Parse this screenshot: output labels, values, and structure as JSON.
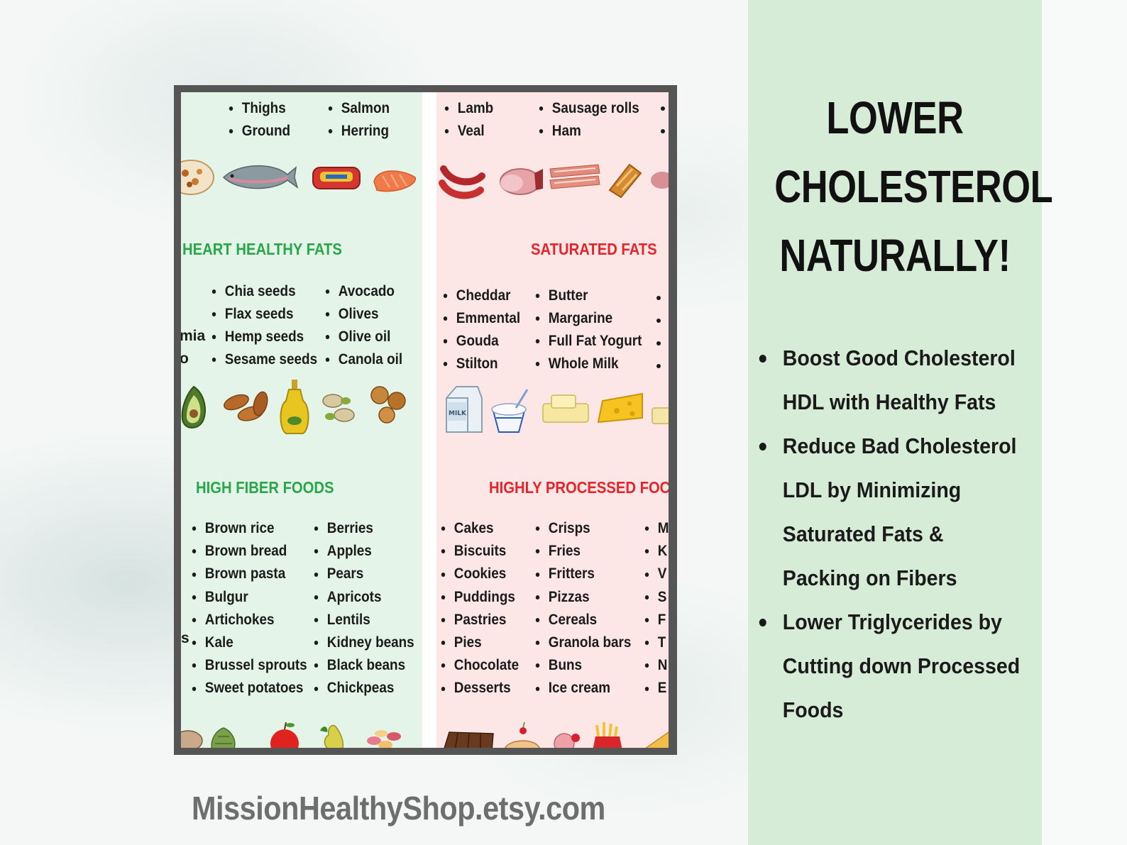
{
  "headline": {
    "line1": "LOWER",
    "line2": "CHOLESTEROL",
    "line3": "NATURALLY!"
  },
  "benefits": [
    "Boost Good Cholesterol",
    "HDL with Healthy Fats",
    "Reduce Bad Cholesterol",
    "LDL by Minimizing",
    "Saturated Fats &",
    "Packing on Fibers",
    "Lower Triglycerides by",
    "Cutting down Processed",
    "Foods"
  ],
  "poster": {
    "top_green": {
      "col1": [
        "Thighs",
        "Ground"
      ],
      "col2": [
        "Salmon",
        "Herring"
      ]
    },
    "top_pink": {
      "col1": [
        "Lamb",
        "Veal"
      ],
      "col2": [
        "Sausage rolls",
        "Ham"
      ]
    },
    "heart_healthy": {
      "title": "HEART HEALTHY FATS",
      "fragments": [
        "mia",
        "o"
      ],
      "col1": [
        "Chia seeds",
        "Flax seeds",
        "Hemp seeds",
        "Sesame seeds"
      ],
      "col2": [
        "Avocado",
        "Olives",
        "Olive oil",
        "Canola oil"
      ]
    },
    "saturated": {
      "title": "SATURATED FATS",
      "col1": [
        "Cheddar",
        "Emmental",
        "Gouda",
        "Stilton"
      ],
      "col2": [
        "Butter",
        "Margarine",
        "Full Fat Yogurt",
        "Whole Milk"
      ]
    },
    "high_fiber": {
      "title": "HIGH FIBER FOODS",
      "fragment": "s",
      "col1": [
        "Brown rice",
        "Brown bread",
        "Brown pasta",
        "Bulgur",
        "Artichokes",
        "Kale",
        "Brussel sprouts",
        "Sweet potatoes"
      ],
      "col2": [
        "Berries",
        "Apples",
        "Pears",
        "Apricots",
        "Lentils",
        "Kidney beans",
        "Black beans",
        "Chickpeas"
      ]
    },
    "processed": {
      "title": "HIGHLY PROCESSED FOC",
      "col1": [
        "Cakes",
        "Biscuits",
        "Cookies",
        "Puddings",
        "Pastries",
        "Pies",
        "Chocolate",
        "Desserts"
      ],
      "col2": [
        "Crisps",
        "Fries",
        "Fritters",
        "Pizzas",
        "Cereals",
        "Granola bars",
        "Buns",
        "Ice cream"
      ],
      "col3": [
        "M",
        "K",
        "V",
        "S",
        "F",
        "T",
        "N",
        "E"
      ]
    },
    "milk_carton_label": "MILK"
  },
  "footer": "MissionHealthyShop.etsy.com",
  "colors": {
    "panel_green": "#d7ecd6",
    "poster_green": "#e4f4e8",
    "poster_pink": "#fde6e6",
    "title_green": "#2aa64a",
    "title_red": "#e4262c"
  }
}
